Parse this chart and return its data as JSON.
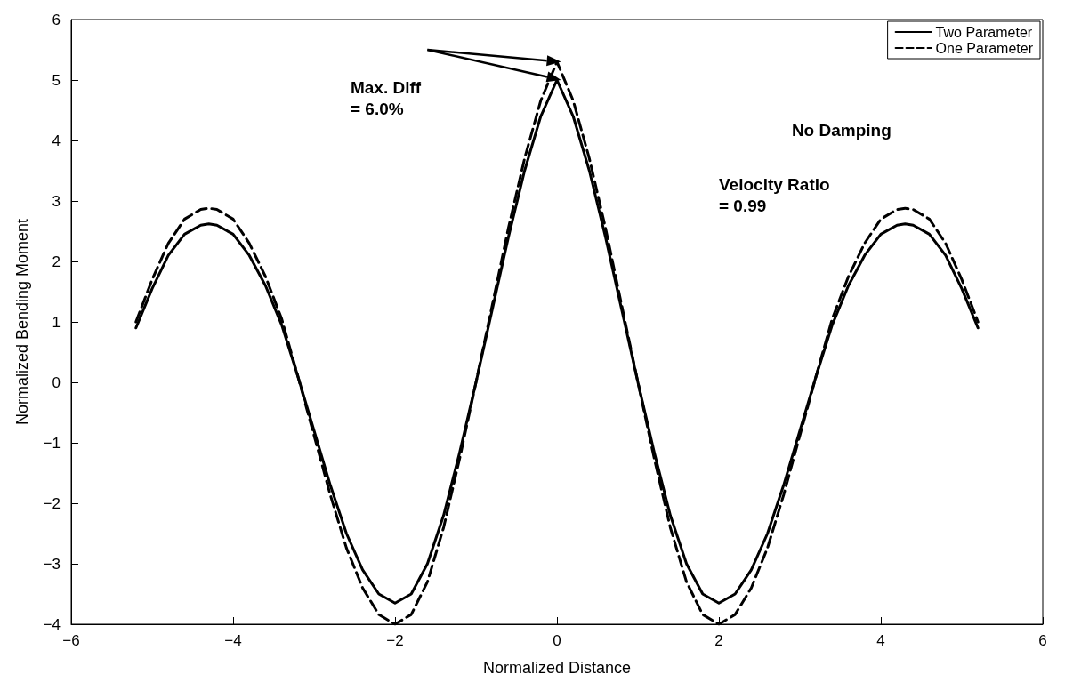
{
  "chart_data": {
    "type": "line",
    "xlabel": "Normalized Distance",
    "ylabel": "Normalized Bending Moment",
    "xlim": [
      -6,
      6
    ],
    "xticks": [
      -6,
      -4,
      -2,
      0,
      2,
      4,
      6
    ],
    "ylim": [
      -4,
      6
    ],
    "yticks": [
      -4,
      -3,
      -2,
      -1,
      0,
      1,
      2,
      3,
      4,
      5,
      6
    ],
    "grid": false,
    "legend": "top right",
    "marker": "none",
    "x": [
      -5.2,
      -5.0,
      -4.8,
      -4.6,
      -4.4,
      -4.3,
      -4.2,
      -4.0,
      -3.8,
      -3.6,
      -3.4,
      -3.2,
      -3.0,
      -2.8,
      -2.6,
      -2.4,
      -2.2,
      -2.0,
      -1.8,
      -1.6,
      -1.4,
      -1.2,
      -1.0,
      -0.8,
      -0.6,
      -0.4,
      -0.2,
      0,
      0.2,
      0.4,
      0.6,
      0.8,
      1.0,
      1.2,
      1.4,
      1.6,
      1.8,
      2.0,
      2.2,
      2.4,
      2.6,
      2.8,
      3.0,
      3.2,
      3.4,
      3.6,
      3.8,
      4.0,
      4.2,
      4.3,
      4.4,
      4.6,
      4.8,
      5.0,
      5.2
    ],
    "series": [
      {
        "name": "Two Parameter",
        "color": "#000000",
        "line_style": "solid",
        "values": [
          0.9,
          1.55,
          2.1,
          2.45,
          2.6,
          2.62,
          2.6,
          2.45,
          2.1,
          1.6,
          0.95,
          0.1,
          -0.8,
          -1.7,
          -2.5,
          -3.1,
          -3.5,
          -3.65,
          -3.5,
          -3.0,
          -2.2,
          -1.15,
          0.0,
          1.2,
          2.4,
          3.5,
          4.4,
          5.0,
          4.4,
          3.5,
          2.4,
          1.2,
          0.0,
          -1.15,
          -2.2,
          -3.0,
          -3.5,
          -3.65,
          -3.5,
          -3.1,
          -2.5,
          -1.7,
          -0.8,
          0.1,
          0.95,
          1.6,
          2.1,
          2.45,
          2.6,
          2.62,
          2.6,
          2.45,
          2.1,
          1.55,
          0.9
        ]
      },
      {
        "name": "One Parameter",
        "color": "#000000",
        "line_style": "dashed",
        "values": [
          1.0,
          1.7,
          2.3,
          2.7,
          2.86,
          2.88,
          2.86,
          2.7,
          2.3,
          1.75,
          1.05,
          0.1,
          -0.88,
          -1.86,
          -2.74,
          -3.4,
          -3.84,
          -4.0,
          -3.84,
          -3.3,
          -2.4,
          -1.25,
          0.0,
          1.27,
          2.55,
          3.7,
          4.66,
          5.3,
          4.66,
          3.7,
          2.55,
          1.27,
          0.0,
          -1.25,
          -2.4,
          -3.3,
          -3.84,
          -4.0,
          -3.84,
          -3.4,
          -2.74,
          -1.86,
          -0.88,
          0.1,
          1.05,
          1.75,
          2.3,
          2.7,
          2.86,
          2.88,
          2.86,
          2.7,
          2.3,
          1.7,
          1.0
        ]
      }
    ],
    "annotations": [
      "Max. Diff\n= 6.0%",
      "No Damping",
      "Velocity Ratio\n= 0.99"
    ]
  }
}
